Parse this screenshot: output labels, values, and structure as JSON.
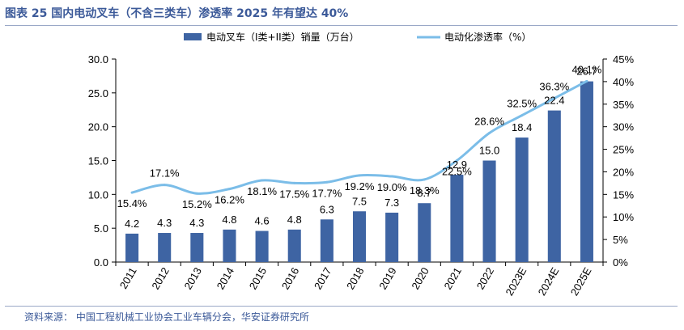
{
  "figure": {
    "title": "图表 25 国内电动叉车（不含三类车）渗透率 2025 年有望达 40%",
    "source": "资料来源： 中国工程机械工业协会工业车辆分会，华安证券研究所"
  },
  "colors": {
    "bar": "#3e64a3",
    "line": "#7bbde8",
    "title": "#3c5a99"
  },
  "chart_data": {
    "type": "bar",
    "categories": [
      "2011",
      "2012",
      "2013",
      "2014",
      "2015",
      "2016",
      "2017",
      "2018",
      "2019",
      "2020",
      "2021",
      "2022",
      "2023E",
      "2024E",
      "2025E"
    ],
    "series": [
      {
        "name": "电动叉车（I类+II类）销量（万台）",
        "type": "bar",
        "axis": "left",
        "values": [
          4.2,
          4.3,
          4.3,
          4.8,
          4.6,
          4.8,
          6.3,
          7.5,
          7.3,
          8.7,
          12.9,
          15.0,
          18.4,
          22.4,
          26.7
        ],
        "labels": [
          "4.2",
          "4.3",
          "4.3",
          "4.8",
          "4.6",
          "4.8",
          "6.3",
          "7.5",
          "7.3",
          "8.7",
          "12.9",
          "15.0",
          "18.4",
          "22.4",
          "26.7"
        ]
      },
      {
        "name": "电动化渗透率（%）",
        "type": "line",
        "axis": "right",
        "values": [
          15.4,
          17.1,
          15.2,
          16.2,
          18.1,
          17.5,
          17.7,
          19.2,
          19.0,
          18.3,
          22.5,
          28.6,
          32.5,
          36.3,
          40.1
        ],
        "labels": [
          "15.4%",
          "17.1%",
          "15.2%",
          "16.2%",
          "18.1%",
          "17.5%",
          "17.7%",
          "19.2%",
          "19.0%",
          "18.3%",
          "22.5%",
          "28.6%",
          "32.5%",
          "36.3%",
          "40.1%"
        ]
      }
    ],
    "y_left": {
      "lim": [
        0,
        30
      ],
      "ticks": [
        "0.0",
        "5.0",
        "10.0",
        "15.0",
        "20.0",
        "25.0",
        "30.0"
      ]
    },
    "y_right": {
      "lim": [
        0,
        45
      ],
      "ticks": [
        "0%",
        "5%",
        "10%",
        "15%",
        "20%",
        "25%",
        "30%",
        "35%",
        "40%",
        "45%"
      ]
    },
    "legend": {
      "placement": "top"
    }
  }
}
